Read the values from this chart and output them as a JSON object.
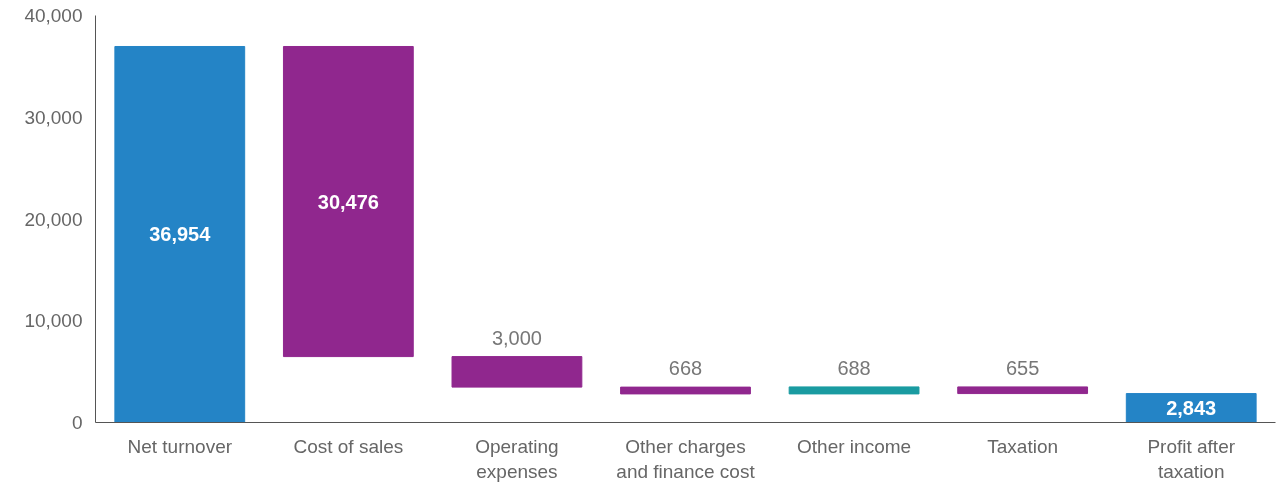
{
  "chart_data": {
    "type": "bar",
    "categories": [
      "Net turnover",
      "Cost of sales",
      "Operating expenses",
      "Other charges and finance cost",
      "Other income",
      "Taxation",
      "Profit after taxation"
    ],
    "values": [
      36954,
      30476,
      3000,
      668,
      688,
      655,
      2843
    ],
    "base": [
      0,
      6478,
      3478,
      2810,
      2810,
      2843,
      0
    ],
    "colors": [
      "#2484c6",
      "#90278e",
      "#90278e",
      "#90278e",
      "#1a9ba1",
      "#90278e",
      "#2484c6"
    ],
    "value_labels": [
      "36,954",
      "30,476",
      "3,000",
      "668",
      "688",
      "655",
      "2,843"
    ],
    "ylim": [
      0,
      40000
    ],
    "yticks": [
      0,
      {
        "value": 10000,
        "label": "10,000"
      },
      {
        "value": 20000,
        "label": "20,000"
      },
      {
        "value": 30000,
        "label": "30,000"
      },
      {
        "value": 40000,
        "label": "40,000"
      }
    ],
    "grid": false
  }
}
